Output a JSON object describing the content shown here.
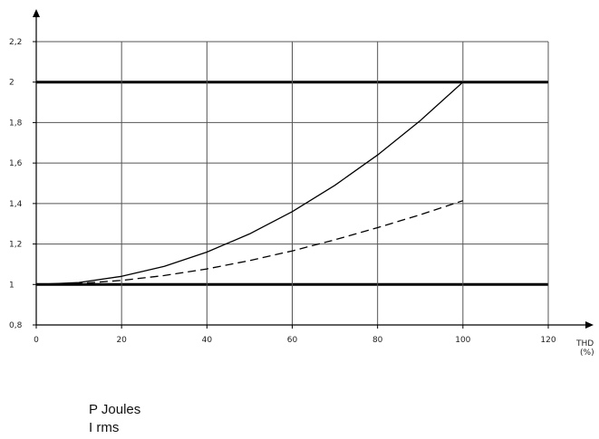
{
  "chart_data": {
    "type": "line",
    "xlabel": "THD",
    "xunit": "(%)",
    "x_ticks": [
      "0",
      "20",
      "40",
      "60",
      "80",
      "100",
      "120"
    ],
    "y_ticks": [
      "0,8",
      "1",
      "1,2",
      "1,4",
      "1,6",
      "1,8",
      "2",
      "2,2"
    ],
    "xlim": [
      0,
      120
    ],
    "ylim": [
      0.8,
      2.2
    ],
    "grid": true,
    "series": [
      {
        "name": "P Joules",
        "style": "solid",
        "x": [
          0,
          10,
          20,
          30,
          40,
          50,
          60,
          70,
          80,
          90,
          100,
          120
        ],
        "y": [
          1.0,
          1.01,
          1.04,
          1.09,
          1.16,
          1.25,
          1.36,
          1.49,
          1.64,
          1.81,
          2.0,
          2.0
        ]
      },
      {
        "name": "I rms",
        "style": "dashed",
        "x": [
          0,
          10,
          20,
          30,
          40,
          50,
          60,
          70,
          80,
          90,
          100
        ],
        "y": [
          1.0,
          1.005,
          1.02,
          1.044,
          1.077,
          1.118,
          1.166,
          1.221,
          1.281,
          1.345,
          1.414
        ]
      }
    ]
  },
  "legend": {
    "line1": "P Joules",
    "line2": "I rms"
  }
}
